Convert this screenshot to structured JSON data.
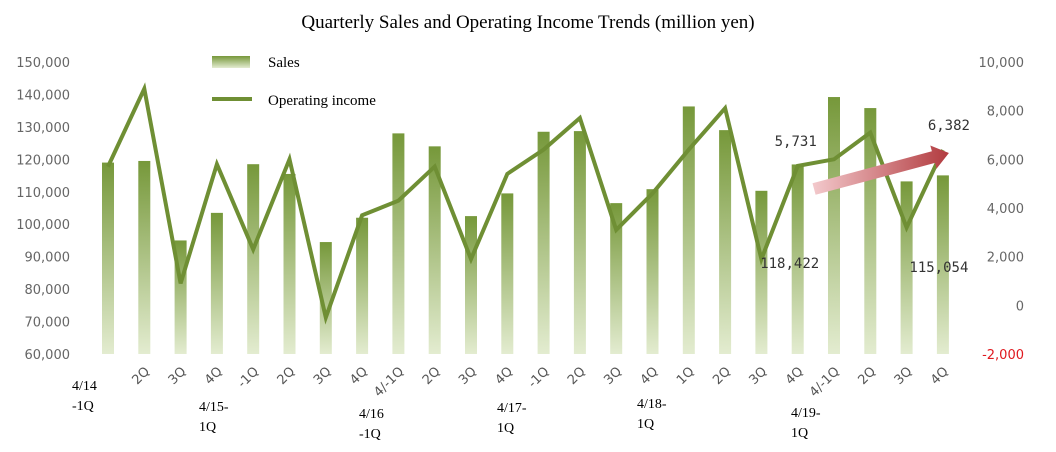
{
  "chart_data": {
    "type": "bar+line",
    "title": "Quarterly Sales and Operating Income Trends (million yen)",
    "categories": [
      "4/14-1Q",
      "2Q",
      "3Q",
      "4Q",
      "4/15-1Q",
      "2Q",
      "3Q",
      "4Q",
      "4/16-1Q",
      "2Q",
      "3Q",
      "4Q",
      "4/17-1Q",
      "2Q",
      "3Q",
      "4Q",
      "4/18-1Q",
      "2Q",
      "3Q",
      "4Q",
      "4/19-1Q",
      "2Q",
      "3Q",
      "4Q"
    ],
    "x_tick_labels": [
      "",
      "2Q",
      "3Q",
      "4Q",
      "-1Q",
      "2Q",
      "3Q",
      "4Q",
      "4/-1Q",
      "2Q",
      "3Q",
      "4Q",
      "-1Q",
      "2Q",
      "3Q",
      "4Q",
      "1Q",
      "2Q",
      "3Q",
      "4Q",
      "4/-1Q",
      "2Q",
      "3Q",
      "4Q"
    ],
    "year_labels": [
      {
        "label": "4/14\n-1Q",
        "index": 0
      },
      {
        "label": "4/15-\n1Q",
        "index": 4
      },
      {
        "label": "4/16\n-1Q",
        "index": 8
      },
      {
        "label": "4/17-\n1Q",
        "index": 12
      },
      {
        "label": "4/18-\n1Q",
        "index": 16
      },
      {
        "label": "4/19-\n1Q",
        "index": 20
      }
    ],
    "series": [
      {
        "name": "Sales",
        "type": "bar",
        "axis": "left",
        "values": [
          119000,
          119500,
          95000,
          103500,
          118500,
          115500,
          94500,
          102000,
          128000,
          124000,
          102500,
          109500,
          128500,
          128700,
          106500,
          110800,
          136300,
          129000,
          110300,
          118422,
          139200,
          135800,
          113200,
          115054
        ]
      },
      {
        "name": "Operating income",
        "type": "line",
        "axis": "right",
        "values": [
          5700,
          8900,
          900,
          5800,
          2300,
          6000,
          -500,
          3700,
          4300,
          5700,
          1900,
          5400,
          6400,
          7700,
          3100,
          4600,
          6400,
          8100,
          1900,
          5731,
          6000,
          7100,
          3200,
          6382
        ]
      }
    ],
    "y_left": {
      "min": 60000,
      "max": 150000,
      "step": 10000,
      "tick_labels": [
        "60,000",
        "70,000",
        "80,000",
        "90,000",
        "100,000",
        "110,000",
        "120,000",
        "130,000",
        "140,000",
        "150,000"
      ]
    },
    "y_right": {
      "min": -2000,
      "max": 10000,
      "step": 2000,
      "tick_labels": [
        "-2,000",
        "0",
        "2,000",
        "4,000",
        "6,000",
        "8,000",
        "10,000"
      ]
    },
    "annotations": [
      {
        "text": "5,731",
        "index": 19,
        "series": "Operating income"
      },
      {
        "text": "6,382",
        "index": 23,
        "series": "Operating income"
      },
      {
        "text": "118,422",
        "index": 19,
        "series": "Sales"
      },
      {
        "text": "115,054",
        "index": 23,
        "series": "Sales"
      }
    ],
    "legend": {
      "position": "top-left",
      "entries": [
        "Sales",
        "Operating income"
      ]
    },
    "grid": false,
    "colors": {
      "bar_top": "#76983a",
      "bar_bottom": "#e3ecd0",
      "line": "#6f8f34",
      "negative_tick": "#e0191f",
      "arrow": "#c0504d"
    }
  }
}
